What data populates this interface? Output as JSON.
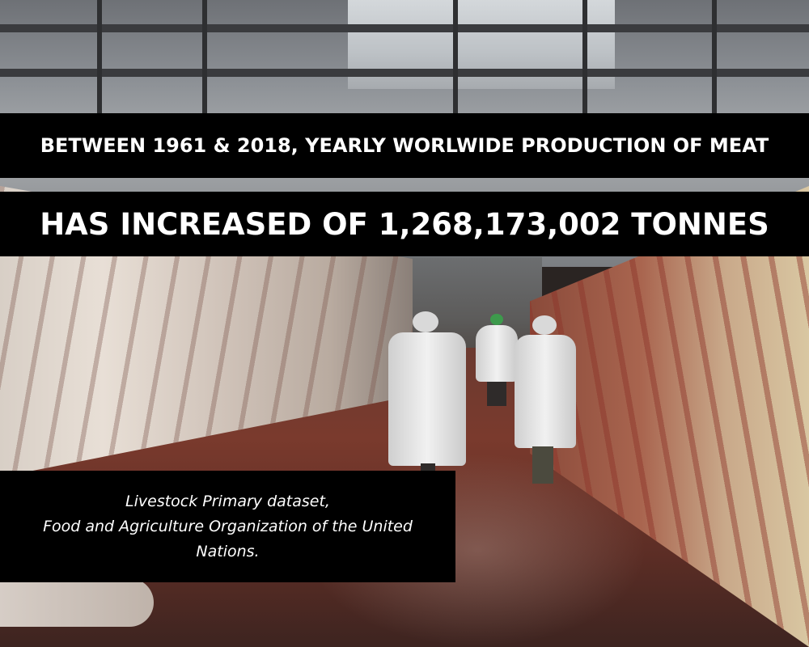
{
  "headline": {
    "line_1": "BETWEEN 1961 & 2018, YEARLY WORLWIDE PRODUCTION OF MEAT",
    "line_2": "HAS INCREASED OF 1,268,173,002 TONNES"
  },
  "source": {
    "line_1": "Livestock Primary dataset,",
    "line_2": "Food and Agriculture Organization of the United",
    "line_3": "Nations."
  }
}
